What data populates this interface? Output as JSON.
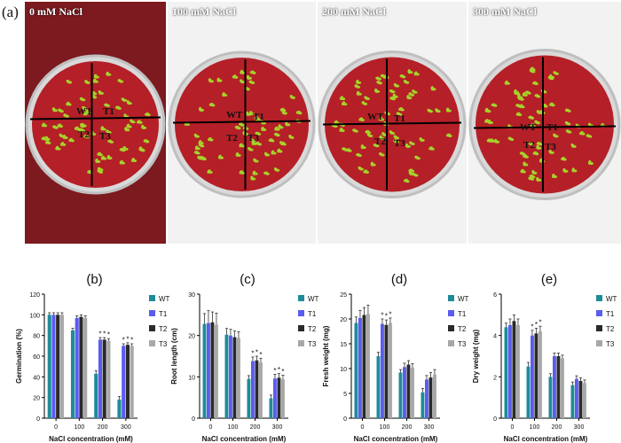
{
  "panel_a": {
    "letter": "(a)",
    "plates": [
      {
        "label": "0 mM NaCl",
        "quadrants": [
          "WT",
          "T1",
          "T2",
          "T3"
        ],
        "seedlings": "green"
      },
      {
        "label": "100 mM NaCl",
        "quadrants": [
          "WT",
          "T1",
          "T2",
          "T3"
        ],
        "seedlings": "green"
      },
      {
        "label": "200 mM NaCl",
        "quadrants": [
          "WT",
          "T1",
          "T2",
          "T3"
        ],
        "seedlings": "green"
      },
      {
        "label": "300 mM NaCl",
        "quadrants": [
          "WT",
          "T1",
          "T2",
          "T3"
        ],
        "seedlings": "green"
      }
    ]
  },
  "colors": {
    "WT": "#1f8b99",
    "T1": "#5b5cf0",
    "T2": "#2a2a2a",
    "T3": "#a8a8a8",
    "agar": "#b51f27",
    "seedling": "#a6d12b"
  },
  "chart_data": [
    {
      "panel": "(b)",
      "type": "bar",
      "categories": [
        "0",
        "100",
        "200",
        "300"
      ],
      "xlabel": "NaCl concentration (mM)",
      "ylabel": "Germination (%)",
      "ylim": [
        0,
        120
      ],
      "yticks": [
        0,
        20,
        40,
        60,
        80,
        100,
        120
      ],
      "series": [
        {
          "name": "WT",
          "values": [
            100,
            85,
            43,
            18
          ],
          "err": [
            2,
            2,
            3,
            3
          ],
          "sig": [
            "",
            "",
            "",
            ""
          ]
        },
        {
          "name": "T1",
          "values": [
            100,
            97,
            76,
            70
          ],
          "err": [
            2,
            2,
            2,
            2
          ],
          "sig": [
            "",
            "",
            "*",
            "*"
          ]
        },
        {
          "name": "T2",
          "values": [
            100,
            98,
            76,
            71
          ],
          "err": [
            2,
            2,
            2,
            2
          ],
          "sig": [
            "",
            "",
            "*",
            "*"
          ]
        },
        {
          "name": "T3",
          "values": [
            100,
            97,
            75,
            70
          ],
          "err": [
            2,
            2,
            2,
            2
          ],
          "sig": [
            "",
            "",
            "*",
            "*"
          ]
        }
      ],
      "legend": "right",
      "grid": false
    },
    {
      "panel": "(c)",
      "type": "bar",
      "categories": [
        "0",
        "100",
        "200",
        "300"
      ],
      "xlabel": "NaCl concentration (mM)",
      "ylabel": "Root length (cm)",
      "ylim": [
        0,
        30
      ],
      "yticks": [
        0,
        10,
        20,
        30
      ],
      "series": [
        {
          "name": "WT",
          "values": [
            22.8,
            20.2,
            9.5,
            4.8
          ],
          "err": [
            2.5,
            1.5,
            0.8,
            0.8
          ],
          "sig": [
            "",
            "",
            "",
            ""
          ]
        },
        {
          "name": "T1",
          "values": [
            23.0,
            20.0,
            13.8,
            9.6
          ],
          "err": [
            3.0,
            1.5,
            1.0,
            1.0
          ],
          "sig": [
            "",
            "",
            "*",
            "*"
          ]
        },
        {
          "name": "T2",
          "values": [
            23.2,
            19.6,
            14.0,
            9.8
          ],
          "err": [
            2.5,
            1.5,
            1.0,
            1.0
          ],
          "sig": [
            "",
            "",
            "*",
            "*"
          ]
        },
        {
          "name": "T3",
          "values": [
            22.6,
            19.4,
            13.5,
            9.4
          ],
          "err": [
            2.8,
            1.5,
            1.0,
            1.0
          ],
          "sig": [
            "",
            "",
            "*",
            "*"
          ]
        }
      ],
      "legend": "right",
      "grid": false
    },
    {
      "panel": "(d)",
      "type": "bar",
      "categories": [
        "0",
        "100",
        "200",
        "300"
      ],
      "xlabel": "NaCl concentration (mM)",
      "ylabel": "Fresh weight (mg)",
      "ylim": [
        0,
        25
      ],
      "yticks": [
        0,
        5,
        10,
        15,
        20,
        25
      ],
      "series": [
        {
          "name": "WT",
          "values": [
            19.2,
            12.5,
            9.2,
            5.2
          ],
          "err": [
            1.2,
            0.8,
            0.6,
            0.8
          ],
          "sig": [
            "",
            "",
            "",
            ""
          ]
        },
        {
          "name": "T1",
          "values": [
            20.2,
            19.0,
            10.3,
            7.8
          ],
          "err": [
            1.5,
            1.0,
            0.8,
            0.8
          ],
          "sig": [
            "",
            "*",
            "",
            ""
          ]
        },
        {
          "name": "T2",
          "values": [
            20.8,
            18.8,
            10.8,
            8.2
          ],
          "err": [
            1.5,
            1.0,
            0.8,
            1.0
          ],
          "sig": [
            "",
            "*",
            "",
            ""
          ]
        },
        {
          "name": "T3",
          "values": [
            21.0,
            19.2,
            10.2,
            8.8
          ],
          "err": [
            1.8,
            1.0,
            0.8,
            1.0
          ],
          "sig": [
            "",
            "*",
            "",
            ""
          ]
        }
      ],
      "legend": "right",
      "grid": false
    },
    {
      "panel": "(e)",
      "type": "bar",
      "categories": [
        "0",
        "100",
        "200",
        "300"
      ],
      "xlabel": "NaCl concentration (mM)",
      "ylabel": "Dry weight (mg)",
      "ylim": [
        0,
        6
      ],
      "yticks": [
        0,
        2,
        4,
        6
      ],
      "series": [
        {
          "name": "WT",
          "values": [
            4.4,
            2.5,
            2.0,
            1.6
          ],
          "err": [
            0.2,
            0.2,
            0.15,
            0.15
          ],
          "sig": [
            "",
            "",
            "",
            ""
          ]
        },
        {
          "name": "T1",
          "values": [
            4.5,
            4.0,
            3.0,
            1.9
          ],
          "err": [
            0.3,
            0.25,
            0.15,
            0.15
          ],
          "sig": [
            "",
            "*",
            "",
            ""
          ]
        },
        {
          "name": "T2",
          "values": [
            4.7,
            4.1,
            3.0,
            1.8
          ],
          "err": [
            0.3,
            0.25,
            0.15,
            0.15
          ],
          "sig": [
            "",
            "*",
            "",
            ""
          ]
        },
        {
          "name": "T3",
          "values": [
            4.5,
            4.2,
            2.9,
            1.7
          ],
          "err": [
            0.3,
            0.25,
            0.15,
            0.15
          ],
          "sig": [
            "",
            "*",
            "",
            ""
          ]
        }
      ],
      "legend": "right",
      "grid": false
    }
  ]
}
